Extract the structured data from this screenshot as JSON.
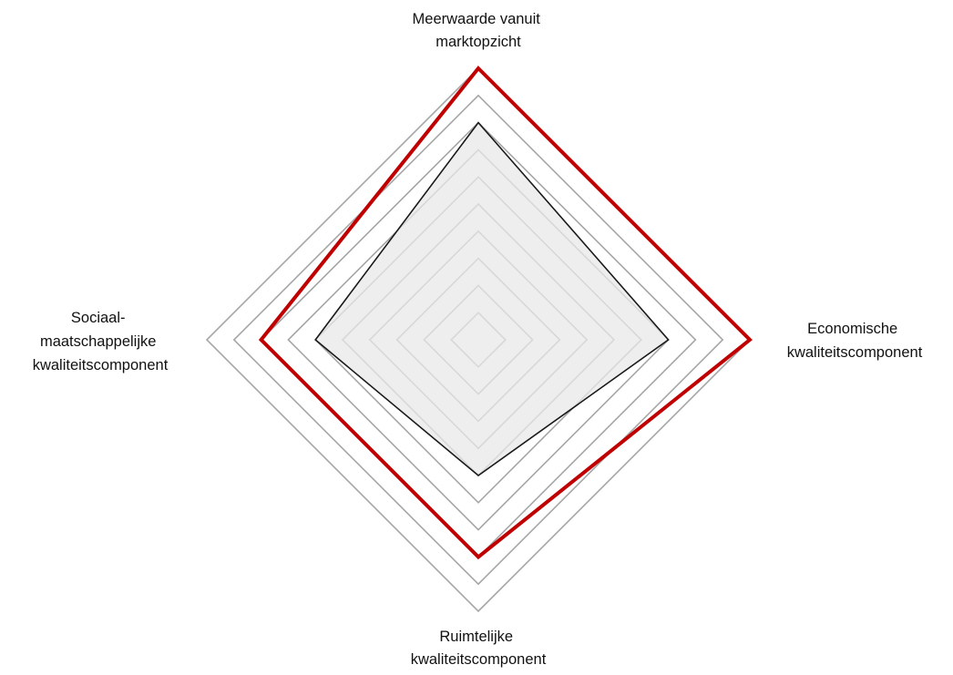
{
  "chart_data": {
    "type": "radar",
    "title": "",
    "axes": [
      {
        "label_lines": [
          "Meerwaarde vanuit",
          "marktopzicht"
        ]
      },
      {
        "label_lines": [
          "Economische",
          "kwaliteitscomponent"
        ]
      },
      {
        "label_lines": [
          "Ruimtelijke",
          "kwaliteitscomponent"
        ]
      },
      {
        "label_lines": [
          "Sociaal-",
          "maatschappelijke",
          "kwaliteitscomponent"
        ]
      }
    ],
    "scale": {
      "min": 0,
      "max": 10,
      "grid_levels": [
        1,
        2,
        3,
        4,
        5,
        6,
        7,
        8,
        9,
        10
      ]
    },
    "grid": true,
    "legend": "none",
    "series": [
      {
        "values": [
          10,
          10,
          8,
          8
        ],
        "color": "#c00000",
        "fill": "none"
      },
      {
        "values": [
          8,
          7,
          5,
          6
        ],
        "color": "#1a1a1a",
        "fill": "#e8e8e8"
      }
    ]
  }
}
